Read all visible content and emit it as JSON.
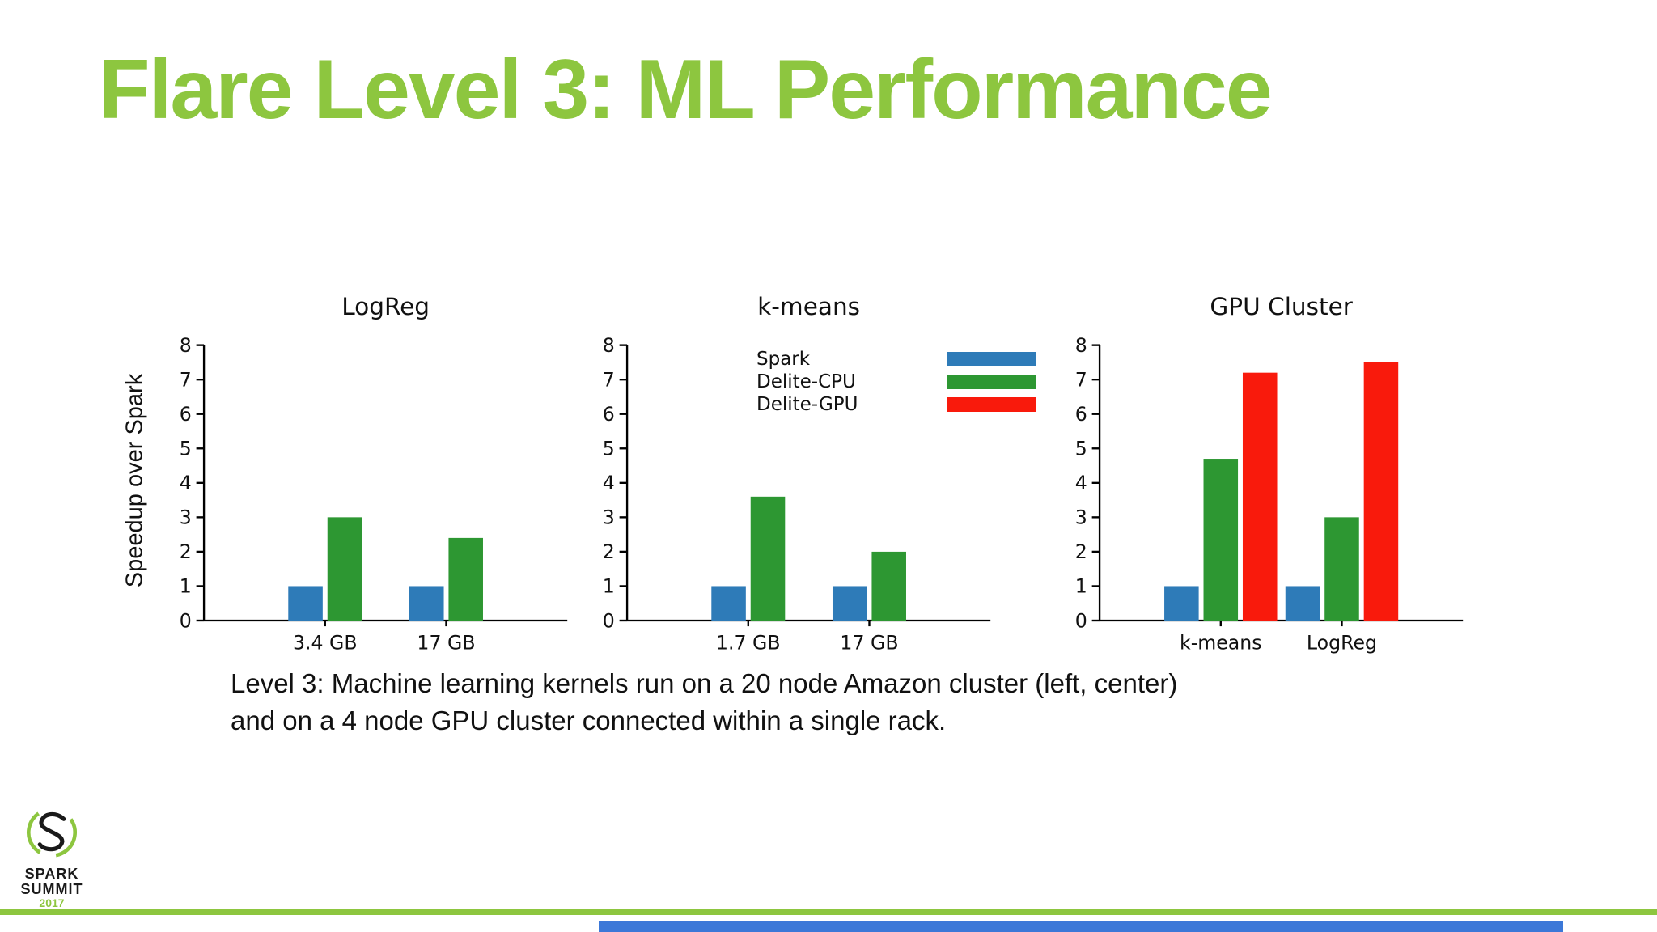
{
  "slide": {
    "title": "Flare Level 3: ML Performance",
    "ylabel": "Speedup over Spark",
    "caption_line1": "Level 3: Machine learning kernels run on a 20 node Amazon cluster (left, center)",
    "caption_line2": "and on a 4 node GPU cluster connected within a single rack."
  },
  "colors": {
    "title-green": "#8dc63f",
    "footer-green": "#8dc63f",
    "footer-blue": "#3c78d8"
  },
  "series_colors": {
    "Spark": "#2e7bb8",
    "Delite-CPU": "#2d9732",
    "Delite-GPU": "#f91a0c"
  },
  "legend": {
    "entries": [
      {
        "label": "Spark",
        "color": "#2e7bb8"
      },
      {
        "label": "Delite-CPU",
        "color": "#2d9732"
      },
      {
        "label": "Delite-GPU",
        "color": "#f91a0c"
      }
    ]
  },
  "logo": {
    "line1": "SPARK",
    "line2": "SUMMIT",
    "year": "2017"
  },
  "chart_data": [
    {
      "type": "bar",
      "title": "LogReg",
      "categories": [
        "3.4 GB",
        "17 GB"
      ],
      "series": [
        {
          "name": "Spark",
          "values": [
            1,
            1
          ]
        },
        {
          "name": "Delite-CPU",
          "values": [
            3.0,
            2.4
          ]
        }
      ],
      "ylabel": "Speedup over Spark",
      "xlabel": "",
      "ylim": [
        0,
        8
      ],
      "yticks": [
        0,
        1,
        2,
        3,
        4,
        5,
        6,
        7,
        8
      ],
      "grid": false,
      "legend_position": "none"
    },
    {
      "type": "bar",
      "title": "k-means",
      "categories": [
        "1.7 GB",
        "17 GB"
      ],
      "series": [
        {
          "name": "Spark",
          "values": [
            1,
            1
          ]
        },
        {
          "name": "Delite-CPU",
          "values": [
            3.6,
            2.0
          ]
        }
      ],
      "ylabel": "Speedup over Spark",
      "xlabel": "",
      "ylim": [
        0,
        8
      ],
      "yticks": [
        0,
        1,
        2,
        3,
        4,
        5,
        6,
        7,
        8
      ],
      "grid": false,
      "legend_position": "upper-center",
      "legend_entries": [
        "Spark",
        "Delite-CPU",
        "Delite-GPU"
      ]
    },
    {
      "type": "bar",
      "title": "GPU Cluster",
      "categories": [
        "k-means",
        "LogReg"
      ],
      "series": [
        {
          "name": "Spark",
          "values": [
            1,
            1
          ]
        },
        {
          "name": "Delite-CPU",
          "values": [
            4.7,
            3.0
          ]
        },
        {
          "name": "Delite-GPU",
          "values": [
            7.2,
            7.5
          ]
        }
      ],
      "ylabel": "Speedup over Spark",
      "xlabel": "",
      "ylim": [
        0,
        8
      ],
      "yticks": [
        0,
        1,
        2,
        3,
        4,
        5,
        6,
        7,
        8
      ],
      "grid": false,
      "legend_position": "none"
    }
  ]
}
